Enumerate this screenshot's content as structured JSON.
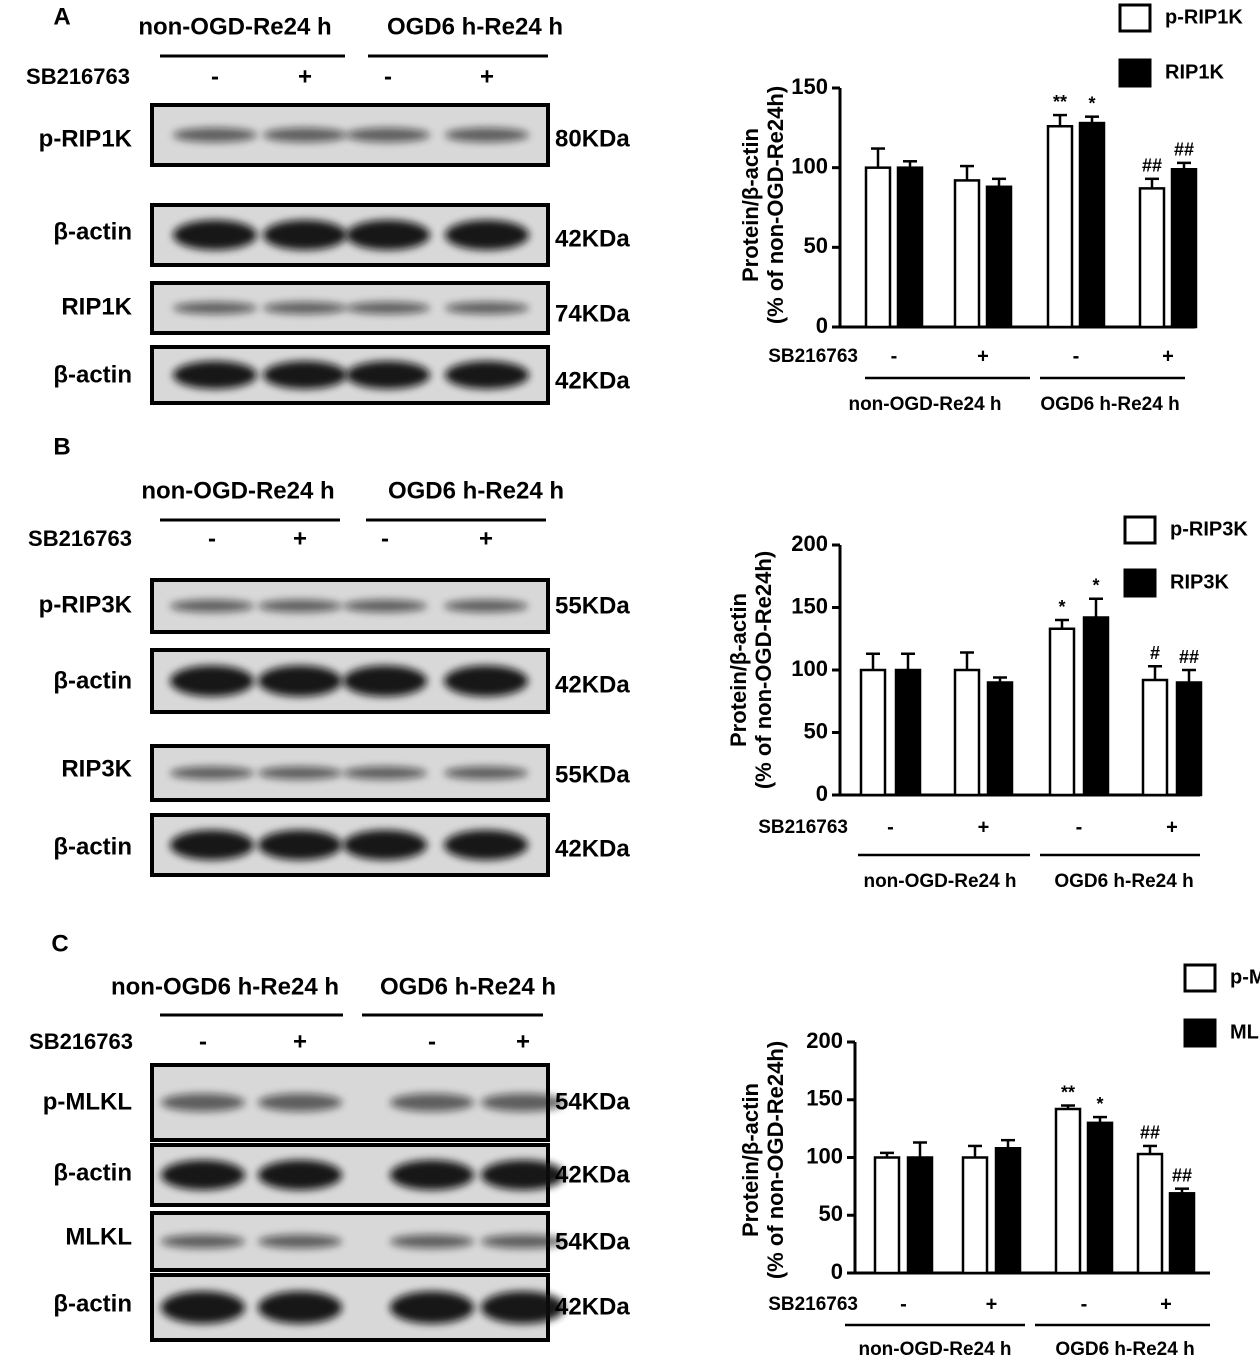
{
  "blots": [
    {
      "panel": "A",
      "groups": [
        "non-OGD-Re24 h",
        "OGD6 h-Re24 h"
      ],
      "treatment": "SB216763",
      "signs": [
        "-",
        "+",
        "-",
        "+"
      ],
      "rows": [
        {
          "label": "p-RIP1K",
          "size": "80KDa"
        },
        {
          "label": "β-actin",
          "size": "42KDa"
        },
        {
          "label": "RIP1K",
          "size": "74KDa"
        },
        {
          "label": "β-actin",
          "size": "42KDa"
        }
      ]
    },
    {
      "panel": "B",
      "groups": [
        "non-OGD-Re24 h",
        "OGD6 h-Re24 h"
      ],
      "treatment": "SB216763",
      "signs": [
        "-",
        "+",
        "-",
        "+"
      ],
      "rows": [
        {
          "label": "p-RIP3K",
          "size": "55KDa"
        },
        {
          "label": "β-actin",
          "size": "42KDa"
        },
        {
          "label": "RIP3K",
          "size": "55KDa"
        },
        {
          "label": "β-actin",
          "size": "42KDa"
        }
      ]
    },
    {
      "panel": "C",
      "groups": [
        "non-OGD6 h-Re24 h",
        "OGD6 h-Re24 h"
      ],
      "treatment": "SB216763",
      "signs": [
        "-",
        "+",
        "-",
        "+"
      ],
      "rows": [
        {
          "label": "p-MLKL",
          "size": "54KDa"
        },
        {
          "label": "β-actin",
          "size": "42KDa"
        },
        {
          "label": "MLKL",
          "size": "54KDa"
        },
        {
          "label": "β-actin",
          "size": "42KDa"
        }
      ]
    }
  ],
  "chart_data": [
    {
      "type": "bar",
      "ylabel": [
        "Protein/β-actin",
        "(% of non-OGD-Re24h)"
      ],
      "x_label": "SB216763",
      "categories": [
        "-",
        "+",
        "-",
        "+"
      ],
      "groups": [
        "non-OGD-Re24 h",
        "OGD6 h-Re24 h"
      ],
      "ylim": [
        0,
        150
      ],
      "yticks": [
        0,
        50,
        100,
        150
      ],
      "series": [
        {
          "name": "p-RIP1K",
          "color": "#ffffff",
          "values": [
            100,
            92,
            126,
            87
          ],
          "errors": [
            12,
            9,
            7,
            6
          ],
          "annotations": [
            null,
            null,
            "**",
            "##"
          ]
        },
        {
          "name": "RIP1K",
          "color": "#000000",
          "values": [
            100,
            88,
            128,
            99
          ],
          "errors": [
            4,
            5,
            4,
            4
          ],
          "annotations": [
            null,
            null,
            "*",
            "##"
          ]
        }
      ]
    },
    {
      "type": "bar",
      "ylabel": [
        "Protein/β-actin",
        "(% of non-OGD-Re24h)"
      ],
      "x_label": "SB216763",
      "categories": [
        "-",
        "+",
        "-",
        "+"
      ],
      "groups": [
        "non-OGD-Re24 h",
        "OGD6 h-Re24 h"
      ],
      "ylim": [
        0,
        200
      ],
      "yticks": [
        0,
        50,
        100,
        150,
        200
      ],
      "series": [
        {
          "name": "p-RIP3K",
          "color": "#ffffff",
          "values": [
            100,
            100,
            133,
            92
          ],
          "errors": [
            13,
            14,
            7,
            11
          ],
          "annotations": [
            null,
            null,
            "*",
            "#"
          ]
        },
        {
          "name": "RIP3K",
          "color": "#000000",
          "values": [
            100,
            90,
            142,
            90
          ],
          "errors": [
            13,
            4,
            15,
            10
          ],
          "annotations": [
            null,
            null,
            "*",
            "##"
          ]
        }
      ]
    },
    {
      "type": "bar",
      "ylabel": [
        "Protein/β-actin",
        "(% of non-OGD-Re24h)"
      ],
      "x_label": "SB216763",
      "categories": [
        "-",
        "+",
        "-",
        "+"
      ],
      "groups": [
        "non-OGD-Re24 h",
        "OGD6 h-Re24 h"
      ],
      "ylim": [
        0,
        200
      ],
      "yticks": [
        0,
        50,
        100,
        150,
        200
      ],
      "series": [
        {
          "name": "p-MLKL",
          "color": "#ffffff",
          "values": [
            100,
            100,
            142,
            103
          ],
          "errors": [
            4,
            10,
            3,
            7
          ],
          "annotations": [
            null,
            null,
            "**",
            "##"
          ]
        },
        {
          "name": "MLKL",
          "color": "#000000",
          "values": [
            100,
            108,
            130,
            69
          ],
          "errors": [
            13,
            7,
            5,
            4
          ],
          "annotations": [
            null,
            null,
            "*",
            "##"
          ]
        }
      ]
    }
  ]
}
